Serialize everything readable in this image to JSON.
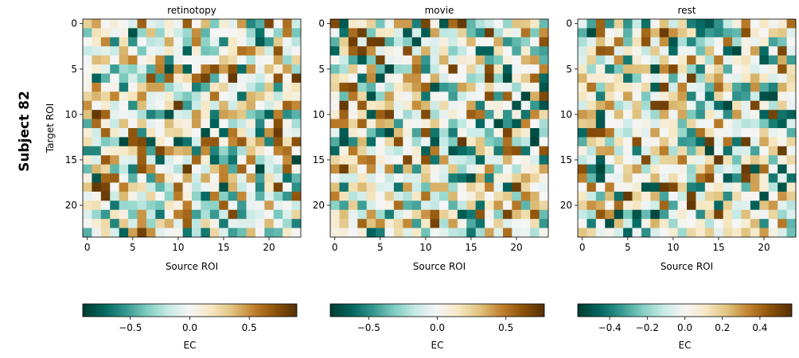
{
  "figure": {
    "row_label": "Subject 82"
  },
  "chart_data": [
    {
      "type": "heatmap",
      "title": "retinotopy",
      "xlabel": "Source ROI",
      "ylabel": "Target ROI",
      "grid_size": 24,
      "xticks": [
        0,
        5,
        10,
        15,
        20
      ],
      "yticks": [
        0,
        5,
        10,
        15,
        20
      ],
      "colormap": "BrBG_r",
      "vmin": -0.9,
      "vmax": 0.9,
      "colorbar_label": "EC",
      "colorbar_ticks": [
        -0.5,
        0.0,
        0.5
      ],
      "colorbar_tick_labels": [
        "−0.5",
        "0.0",
        "0.5"
      ],
      "seed": 82
    },
    {
      "type": "heatmap",
      "title": "movie",
      "xlabel": "Source ROI",
      "ylabel": "",
      "grid_size": 24,
      "xticks": [
        0,
        5,
        10,
        15,
        20
      ],
      "yticks": [
        0,
        5,
        10,
        15,
        20
      ],
      "colormap": "BrBG_r",
      "vmin": -0.78,
      "vmax": 0.78,
      "colorbar_label": "EC",
      "colorbar_ticks": [
        -0.5,
        0.0,
        0.5
      ],
      "colorbar_tick_labels": [
        "−0.5",
        "0.0",
        "0.5"
      ],
      "seed": 182
    },
    {
      "type": "heatmap",
      "title": "rest",
      "xlabel": "Source ROI",
      "ylabel": "",
      "grid_size": 24,
      "xticks": [
        0,
        5,
        10,
        15,
        20
      ],
      "yticks": [
        0,
        5,
        10,
        15,
        20
      ],
      "colormap": "BrBG_r",
      "vmin": -0.57,
      "vmax": 0.57,
      "colorbar_label": "EC",
      "colorbar_ticks": [
        -0.4,
        -0.2,
        0.0,
        0.2,
        0.4
      ],
      "colorbar_tick_labels": [
        "−0.4",
        "−0.2",
        "0.0",
        "0.2",
        "0.4"
      ],
      "seed": 282
    }
  ],
  "colors": {
    "cmap_stops": [
      "#003c30",
      "#01665e",
      "#35978f",
      "#80cdc1",
      "#c7eae5",
      "#f5f5f5",
      "#f6e8c3",
      "#dfc27d",
      "#bf812d",
      "#8c510a",
      "#543005"
    ]
  }
}
